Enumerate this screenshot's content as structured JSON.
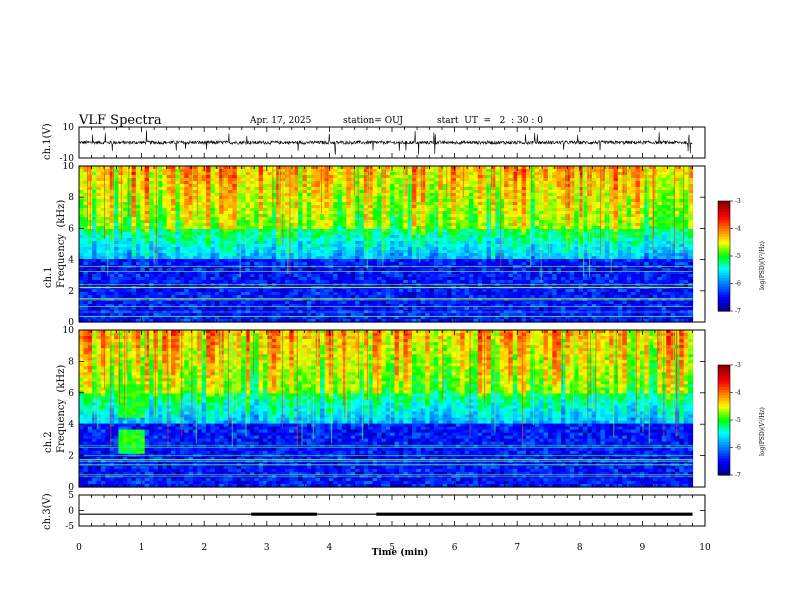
{
  "header": {
    "title": "VLF Spectra",
    "date": "Apr. 17, 2025",
    "station": "station= OUJ",
    "start": "start  UT  =   2  : 30 : 0"
  },
  "labels": {
    "ch1_wave": "ch.1(V)",
    "ch1_spec": "ch.1\nFrequency  (kHz)",
    "ch2_spec": "ch.2\nFrequency  (kHz)",
    "ch3_wave": "ch.3(V)",
    "xlabel": "Time  (min)",
    "colorbar": "log(PSD)(V²/Hz)"
  },
  "colors": {
    "dark_blue": "#00007f",
    "blue": "#0000ff",
    "cyan": "#00ffff",
    "green": "#00ff00",
    "yellow": "#ffff00",
    "red": "#ff0000",
    "dark_red": "#7f0000"
  },
  "chart_data": [
    {
      "type": "line",
      "name": "ch.1 waveform",
      "ylabel": "ch.1(V)",
      "xlim": [
        0,
        10
      ],
      "ylim": [
        -10,
        10
      ],
      "yticks": [
        10,
        -10
      ],
      "baseline": 0
    },
    {
      "type": "heatmap",
      "name": "ch.1 spectrogram",
      "ylabel": "Frequency (kHz)",
      "xlim": [
        0,
        10
      ],
      "ylim": [
        0,
        10
      ],
      "yticks": [
        0,
        2,
        4,
        6,
        8,
        10
      ],
      "colorbar": {
        "label": "log(PSD)(V²/Hz)",
        "range": [
          -7,
          -3
        ],
        "ticks": [
          -3,
          -4,
          -5,
          -6,
          -7
        ]
      }
    },
    {
      "type": "heatmap",
      "name": "ch.2 spectrogram",
      "ylabel": "Frequency (kHz)",
      "xlim": [
        0,
        10
      ],
      "ylim": [
        0,
        10
      ],
      "yticks": [
        0,
        2,
        4,
        6,
        8,
        10
      ],
      "colorbar": {
        "label": "log(PSD)(V²/Hz)",
        "range": [
          -7,
          -3
        ],
        "ticks": [
          -3,
          -4,
          -5,
          -6,
          -7
        ]
      }
    },
    {
      "type": "line",
      "name": "ch.3 waveform",
      "ylabel": "ch.3(V)",
      "xlim": [
        0,
        10
      ],
      "ylim": [
        -5,
        5
      ],
      "yticks": [
        5,
        0,
        -5
      ],
      "level": -1.2,
      "thick_segments": [
        [
          2.75,
          3.8
        ],
        [
          4.75,
          9.8
        ]
      ]
    },
    {
      "type": "axis",
      "xlabel": "Time (min)",
      "xticks": [
        0,
        1,
        2,
        3,
        4,
        5,
        6,
        7,
        8,
        9,
        10
      ]
    }
  ]
}
